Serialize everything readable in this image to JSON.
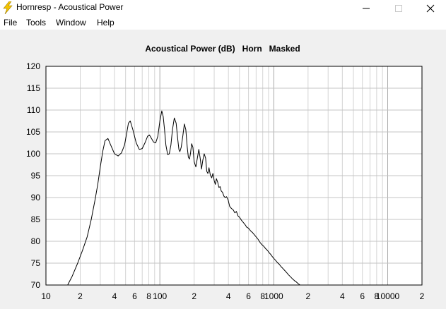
{
  "window": {
    "title": "Hornresp - Acoustical Power",
    "icon": "lightning-bolt-icon",
    "controls": [
      "minimize-icon",
      "maximize-icon",
      "close-icon"
    ]
  },
  "menu": {
    "items": [
      {
        "label": "File"
      },
      {
        "label": "Tools"
      },
      {
        "label": "Window"
      },
      {
        "label": "Help"
      }
    ]
  },
  "chart_data": {
    "type": "line",
    "title": "Acoustical Power (dB)   Horn   Masked",
    "xscale": "log",
    "xlim": [
      10,
      20000
    ],
    "ylim": [
      70,
      120
    ],
    "grid": true,
    "xticks": [
      {
        "value": 10,
        "label": "10"
      },
      {
        "value": 20,
        "label": "2"
      },
      {
        "value": 40,
        "label": "4"
      },
      {
        "value": 60,
        "label": "6"
      },
      {
        "value": 80,
        "label": "8"
      },
      {
        "value": 100,
        "label": "100"
      },
      {
        "value": 200,
        "label": "2"
      },
      {
        "value": 400,
        "label": "4"
      },
      {
        "value": 600,
        "label": "6"
      },
      {
        "value": 800,
        "label": "8"
      },
      {
        "value": 1000,
        "label": "1000"
      },
      {
        "value": 2000,
        "label": "2"
      },
      {
        "value": 4000,
        "label": "4"
      },
      {
        "value": 6000,
        "label": "6"
      },
      {
        "value": 8000,
        "label": "8"
      },
      {
        "value": 10000,
        "label": "10000"
      },
      {
        "value": 20000,
        "label": "2"
      }
    ],
    "yticks": [
      120,
      115,
      110,
      105,
      100,
      95,
      90,
      85,
      80,
      75,
      70
    ],
    "series": [
      {
        "color": "#000000",
        "x": [
          15.5,
          17,
          19,
          21,
          23,
          25,
          27,
          28.5,
          30,
          31.5,
          33,
          35,
          37,
          40,
          43,
          46,
          49,
          51,
          53,
          55,
          58,
          62,
          66,
          70,
          74,
          78,
          81,
          84,
          88,
          92,
          96,
          100,
          104,
          107,
          110,
          113,
          117,
          121,
          125,
          129,
          134,
          139,
          144,
          147,
          150,
          154,
          159,
          164,
          169,
          174,
          178,
          182,
          186,
          190,
          195,
          200,
          207,
          214,
          220,
          226,
          232,
          238,
          245,
          252,
          258,
          264,
          270,
          277,
          285,
          292,
          300,
          307,
          314,
          322,
          330,
          338,
          346,
          355,
          365,
          375,
          385,
          397,
          410,
          425,
          440,
          455,
          470,
          485,
          500,
          520,
          540,
          560,
          580,
          600,
          625,
          650,
          675,
          700,
          730,
          760,
          790,
          820,
          850,
          880,
          910,
          940,
          970,
          1000,
          1040,
          1080,
          1120,
          1160,
          1200,
          1250,
          1300,
          1350,
          1400,
          1460,
          1520,
          1580,
          1640,
          1700,
          1770,
          1840,
          1910,
          1980,
          2060
        ],
        "y": [
          70,
          72,
          75,
          78,
          81,
          85,
          89.5,
          93,
          97,
          100.5,
          103,
          103.5,
          102,
          100,
          99.5,
          100.2,
          102,
          104.5,
          107,
          107.5,
          105.5,
          102.5,
          101,
          101.2,
          102.5,
          104,
          104.3,
          103.6,
          102.7,
          102.5,
          104,
          107.5,
          109.8,
          108.5,
          105.5,
          102,
          99.8,
          100,
          102,
          105.5,
          108.2,
          107,
          103,
          101,
          100.5,
          101.5,
          104,
          106.8,
          105.5,
          101.5,
          99.2,
          98.8,
          100.2,
          102.3,
          101.5,
          98.2,
          97,
          99.2,
          101,
          99,
          96.5,
          98.5,
          100,
          99,
          96,
          95.5,
          96.8,
          95.2,
          94.5,
          95.5,
          93.8,
          93,
          94.3,
          93.5,
          92.3,
          92.5,
          91.5,
          91.2,
          90.3,
          90,
          90.2,
          89.5,
          88,
          87.5,
          87.2,
          86.5,
          86.8,
          85.8,
          85.5,
          84.8,
          84.3,
          83.8,
          83.2,
          83,
          82.4,
          82,
          81.5,
          81,
          80.4,
          79.7,
          79.2,
          78.8,
          78.3,
          77.9,
          77.4,
          77,
          76.5,
          76.1,
          75.6,
          75.1,
          74.7,
          74.2,
          73.8,
          73.3,
          72.8,
          72.3,
          71.9,
          71.4,
          71,
          70.7,
          70.3,
          70,
          69.8,
          69.5,
          69.2,
          69,
          68.8
        ]
      }
    ]
  }
}
